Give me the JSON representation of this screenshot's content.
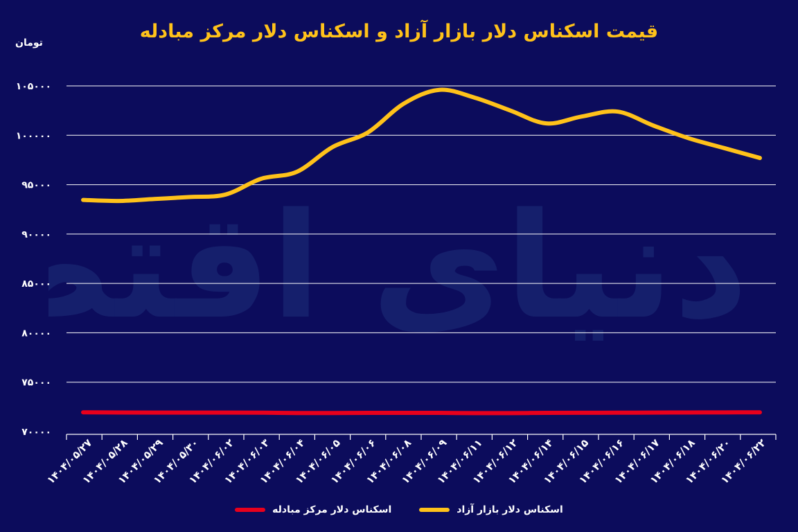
{
  "chart_data": {
    "type": "line",
    "title": "قیمت اسکناس دلار بازار آزاد و اسکناس دلار مرکز مبادله",
    "ylabel": "تومان",
    "xlabel": "",
    "ylim": [
      70000,
      105000
    ],
    "yticks": [
      "۷۰۰۰۰",
      "۷۵۰۰۰",
      "۸۰۰۰۰",
      "۸۵۰۰۰",
      "۹۰۰۰۰",
      "۹۵۰۰۰",
      "۱۰۰۰۰۰",
      "۱۰۵۰۰۰"
    ],
    "yticks_values": [
      70000,
      75000,
      80000,
      85000,
      90000,
      95000,
      100000,
      105000
    ],
    "categories": [
      "۱۴۰۴/۰۵/۲۷",
      "۱۴۰۴/۰۵/۲۸",
      "۱۴۰۴/۰۵/۲۹",
      "۱۴۰۴/۰۵/۳۰",
      "۱۴۰۴/۰۶/۰۲",
      "۱۴۰۴/۰۶/۰۳",
      "۱۴۰۴/۰۶/۰۴",
      "۱۴۰۴/۰۶/۰۵",
      "۱۴۰۴/۰۶/۰۶",
      "۱۴۰۴/۰۶/۰۸",
      "۱۴۰۴/۰۶/۰۹",
      "۱۴۰۴/۰۶/۱۱",
      "۱۴۰۴/۰۶/۱۲",
      "۱۴۰۴/۰۶/۱۴",
      "۱۴۰۴/۰۶/۱۵",
      "۱۴۰۴/۰۶/۱۶",
      "۱۴۰۴/۰۶/۱۷",
      "۱۴۰۴/۰۶/۱۸",
      "۱۴۰۴/۰۶/۲۰",
      "۱۴۰۴/۰۶/۲۲"
    ],
    "series": [
      {
        "name": "اسکناس دلار بازار آزاد",
        "color": "#ffc21a",
        "values": [
          93450,
          93350,
          93550,
          93750,
          94000,
          95600,
          96300,
          98800,
          100300,
          103200,
          104600,
          103800,
          102500,
          101200,
          101900,
          102400,
          101000,
          99700,
          98700,
          97700
        ]
      },
      {
        "name": "اسکناس دلار مرکز مبادله",
        "color": "#e8001c",
        "values": [
          71950,
          71930,
          71920,
          71920,
          71920,
          71910,
          71880,
          71880,
          71890,
          71890,
          71890,
          71870,
          71870,
          71890,
          71900,
          71910,
          71920,
          71930,
          71940,
          71950
        ]
      }
    ],
    "grid": true,
    "legend": "bottom-center"
  },
  "watermark": "دنیای اقتصاد"
}
